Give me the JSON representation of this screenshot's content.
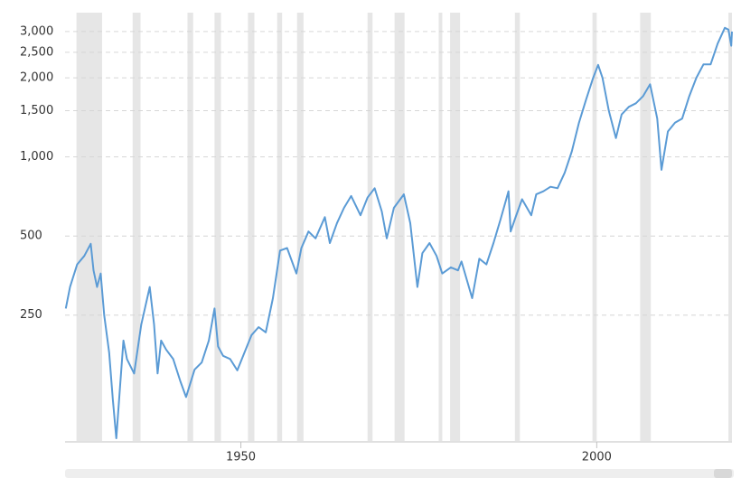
{
  "chart_data": {
    "type": "line",
    "log_y": true,
    "grid": true,
    "xlim": [
      1925.3,
      2019
    ],
    "ylim": [
      83,
      3540
    ],
    "xticks": [
      1950,
      2000
    ],
    "yticks": [
      250,
      500,
      {
        "value": 1000,
        "label": "1,000"
      },
      {
        "value": 1500,
        "label": "1,500"
      },
      {
        "value": 2000,
        "label": "2,000"
      },
      {
        "value": 2500,
        "label": "2,500"
      },
      {
        "value": 3000,
        "label": "3,000"
      }
    ],
    "recessions": [
      [
        1926.9,
        1930.5
      ],
      [
        1934.8,
        1935.9
      ],
      [
        1942.5,
        1943.3
      ],
      [
        1946.3,
        1947.2
      ],
      [
        1951.0,
        1951.9
      ],
      [
        1955.1,
        1955.8
      ],
      [
        1957.9,
        1958.8
      ],
      [
        1967.8,
        1968.5
      ],
      [
        1971.6,
        1973.0
      ],
      [
        1977.8,
        1978.3
      ],
      [
        1979.4,
        1980.8
      ],
      [
        1988.5,
        1989.2
      ],
      [
        1999.4,
        2000.0
      ],
      [
        2006.1,
        2007.6
      ],
      [
        2018.5,
        2019.0
      ]
    ],
    "recession_color": "#e6e6e6",
    "series": [
      {
        "color": "#5b9bd5",
        "x": [
          1925.4,
          1926,
          1927,
          1928,
          1928.9,
          1929.3,
          1929.8,
          1930.3,
          1930.8,
          1931.5,
          1932,
          1932.5,
          1933,
          1933.5,
          1934,
          1935,
          1936,
          1937.2,
          1937.8,
          1938.3,
          1938.8,
          1939.5,
          1940.5,
          1941.5,
          1942.3,
          1943.5,
          1944.5,
          1945.5,
          1946.3,
          1946.8,
          1947.5,
          1948.5,
          1949.5,
          1950.5,
          1951.5,
          1952.5,
          1953.5,
          1954.5,
          1955.5,
          1956.5,
          1957.8,
          1958.5,
          1959.5,
          1960.5,
          1961.8,
          1962.5,
          1963.5,
          1964.5,
          1965.5,
          1966.8,
          1967.8,
          1968.8,
          1969.8,
          1970.5,
          1971.5,
          1972.9,
          1973.8,
          1974.8,
          1975.5,
          1976.5,
          1977.5,
          1978.3,
          1979.5,
          1980.5,
          1981,
          1982.5,
          1983.5,
          1984.5,
          1985.5,
          1986.5,
          1987.6,
          1987.9,
          1988.5,
          1989.5,
          1990.8,
          1991.5,
          1992.5,
          1993.5,
          1994.5,
          1995.5,
          1996.5,
          1997.5,
          1998.5,
          1999.5,
          2000.2,
          2000.8,
          2001.7,
          2002.7,
          2003.5,
          2004.5,
          2005.5,
          2006.5,
          2007.5,
          2008.5,
          2009.1,
          2010,
          2011,
          2012,
          2013,
          2014,
          2015,
          2016,
          2017,
          2018,
          2018.5,
          2018.9,
          2019
        ],
        "values": [
          265,
          320,
          390,
          420,
          467,
          370,
          320,
          360,
          250,
          180,
          120,
          85,
          130,
          200,
          170,
          150,
          230,
          320,
          230,
          150,
          200,
          185,
          170,
          140,
          122,
          155,
          165,
          200,
          265,
          190,
          175,
          170,
          154,
          180,
          210,
          225,
          215,
          290,
          440,
          450,
          360,
          450,
          520,
          490,
          590,
          470,
          560,
          640,
          710,
          600,
          700,
          760,
          620,
          490,
          640,
          720,
          560,
          320,
          430,
          470,
          420,
          360,
          380,
          370,
          400,
          290,
          410,
          390,
          470,
          580,
          740,
          520,
          580,
          690,
          600,
          720,
          740,
          770,
          760,
          870,
          1050,
          1350,
          1650,
          2000,
          2240,
          2000,
          1500,
          1180,
          1450,
          1550,
          1600,
          1700,
          1890,
          1400,
          893,
          1250,
          1350,
          1400,
          1700,
          2000,
          2250,
          2250,
          2700,
          3100,
          3050,
          2650,
          3000
        ]
      }
    ]
  }
}
